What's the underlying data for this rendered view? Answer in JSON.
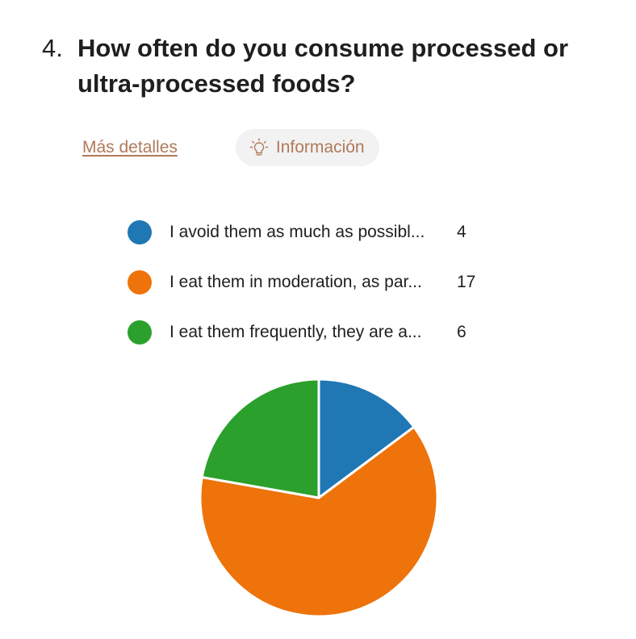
{
  "question": {
    "number": "4.",
    "text": "How often do you consume processed or ultra-processed foods?"
  },
  "links": {
    "details": "Más detalles",
    "info": "Información",
    "info_icon": "lightbulb-icon"
  },
  "chart_data": {
    "type": "pie",
    "categories": [
      "I avoid them as much as possibl...",
      "I eat them in moderation, as par...",
      "I eat them frequently, they are a..."
    ],
    "values": [
      4,
      17,
      6
    ],
    "colors": [
      "#1f77b4",
      "#ed730a",
      "#2ca02c"
    ],
    "legend_position": "top"
  }
}
